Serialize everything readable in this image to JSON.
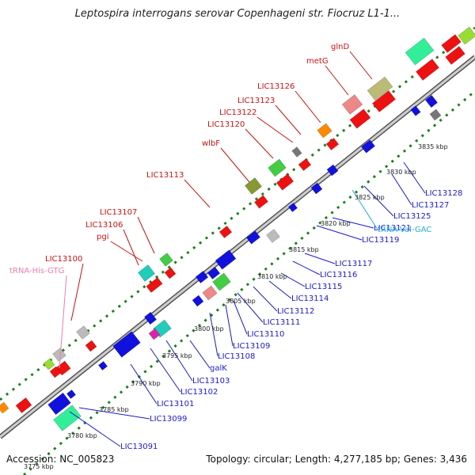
{
  "title": "Leptospira interrogans serovar Copenhageni str. Fiocruz L1-1...",
  "accession_text": "Accession: NC_005823",
  "topology_text": "Topology: circular; Length: 4,277,185 bp; Genes: 3,436",
  "colors": {
    "backbone": "#8a8a8a",
    "tick": "#1f7f1f",
    "forward_label": "#cc1111",
    "reverse_label": "#1a1acc",
    "rrna_label_pink": "#e87fb0",
    "trna_label_cyan": "#22aadd"
  },
  "kbp_labels": [
    "3775 kbp",
    "3780 kbp",
    "3785 kbp",
    "3790 kbp",
    "3795 kbp",
    "3800 kbp",
    "3805 kbp",
    "3810 kbp",
    "3815 kbp",
    "3820 kbp",
    "3825 kbp",
    "3830 kbp",
    "3835 kbp"
  ],
  "forward_labels": [
    "LIC13100",
    "tRNA-His-GTG",
    "pgi",
    "LIC13106",
    "LIC13107",
    "LIC13113",
    "wlbF",
    "LIC13120",
    "LIC13122",
    "LIC13123",
    "LIC13126",
    "metG",
    "glnD"
  ],
  "reverse_labels": [
    "LIC13091",
    "LIC13099",
    "LIC13101",
    "LIC13102",
    "LIC13103",
    "galK",
    "LIC13108",
    "LIC13109",
    "LIC13110",
    "LIC13111",
    "LIC13112",
    "LIC13114",
    "LIC13115",
    "LIC13116",
    "LIC13117",
    "LIC13119",
    "LIC13121",
    "tRNA-Val-GAC",
    "LIC13125",
    "LIC13127",
    "LIC13128"
  ],
  "feature_colors": {
    "red": "#ee1111",
    "blue": "#1111dd",
    "green": "#44cc44",
    "cyan": "#22ccbb",
    "grey": "#bbbbbb",
    "olive": "#889933",
    "khaki": "#bbbb77",
    "pink": "#ee8888",
    "orange": "#ff8800",
    "magenta": "#dd22aa",
    "lime": "#99dd33",
    "springgreen": "#33ee99",
    "darkgrey": "#777777"
  }
}
